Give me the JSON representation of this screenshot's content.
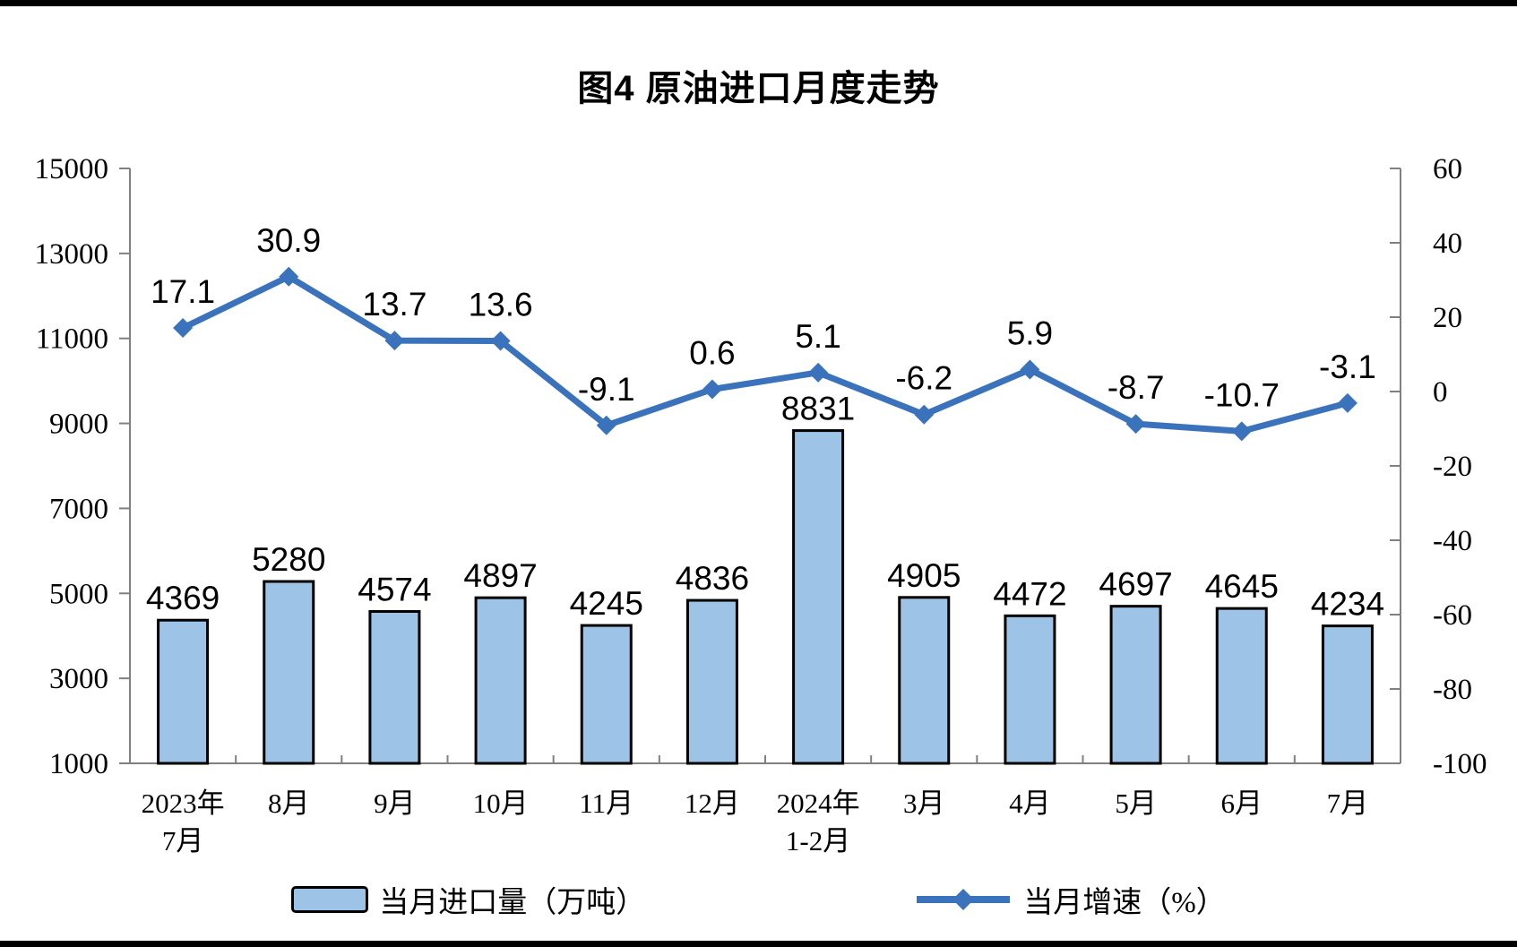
{
  "chart_data": {
    "type": "bar+line",
    "title": "图4 原油进口月度走势",
    "categories": [
      "2023年\n7月",
      "8月",
      "9月",
      "10月",
      "11月",
      "12月",
      "2024年\n1-2月",
      "3月",
      "4月",
      "5月",
      "6月",
      "7月"
    ],
    "series": [
      {
        "name": "当月进口量（万吨）",
        "type": "bar",
        "axis": "left",
        "values": [
          4369,
          5280,
          4574,
          4897,
          4245,
          4836,
          8831,
          4905,
          4472,
          4697,
          4645,
          4234
        ],
        "fill": "#9DC3E6",
        "stroke": "#000000"
      },
      {
        "name": "当月增速（%）",
        "type": "line",
        "axis": "right",
        "values": [
          17.1,
          30.9,
          13.7,
          13.6,
          -9.1,
          0.6,
          5.1,
          -6.2,
          5.9,
          -8.7,
          -10.7,
          -3.1
        ],
        "color": "#3B72BC",
        "marker": "diamond"
      }
    ],
    "left_axis": {
      "min": 1000,
      "max": 15000,
      "step": 2000,
      "ticks": [
        15000,
        13000,
        11000,
        9000,
        7000,
        5000,
        3000,
        1000
      ]
    },
    "right_axis": {
      "min": -100,
      "max": 60,
      "step": 20,
      "ticks": [
        60,
        40,
        20,
        0,
        -20,
        -40,
        -60,
        -80,
        -100
      ]
    },
    "xlabel": "",
    "ylabel": "",
    "grid": false,
    "legend_position": "bottom",
    "legend": [
      "当月进口量（万吨）",
      "当月增速（%）"
    ],
    "axis_color": "#808080",
    "label_color": "#000000"
  }
}
